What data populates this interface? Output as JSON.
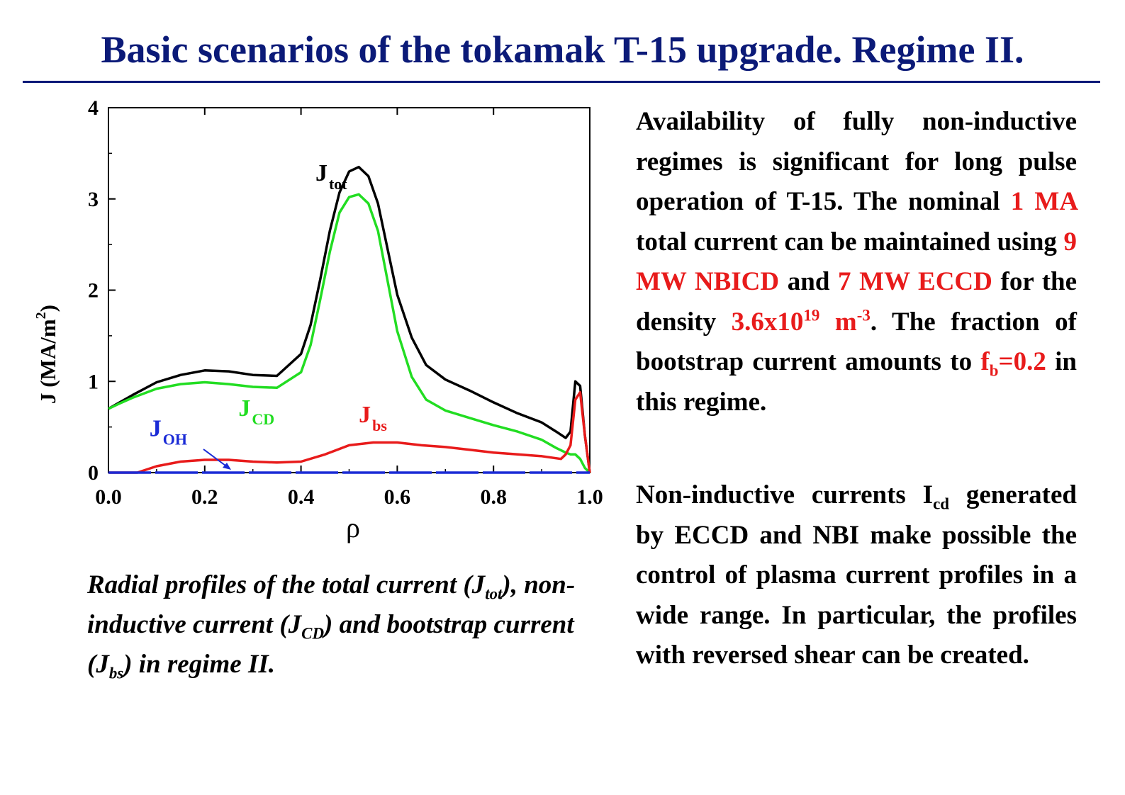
{
  "title": "Basic scenarios of the tokamak T-15 upgrade. Regime II.",
  "colors": {
    "title": "#0b1a78",
    "highlight": "#e81b1b",
    "tot": "#000000",
    "cd": "#22dd22",
    "bs": "#e81b1b",
    "oh": "#1a2bd6"
  },
  "caption": {
    "t1": "Radial profiles of the total current (J",
    "s1": "tot",
    "t2": "), non-inductive current (J",
    "s2": "CD",
    "t3": ") and bootstrap current (J",
    "s3": "bs",
    "t4": ") in regime II."
  },
  "para1": {
    "t1": "Availability of fully non-inductive regimes is significant for long pulse operation of T-15. The nominal ",
    "h1": "1 MA",
    "t2": " total current can be maintained using ",
    "h2": "9 MW NBICD",
    "t3": " and ",
    "h3": "7 MW ECCD",
    "t4": " for the density ",
    "h4": "3.6x10",
    "h4sup": "19",
    "h5": " m",
    "h5sup": "-3",
    "t5": ". The fraction of bootstrap current amounts to ",
    "h6": "f",
    "h6sub": "b",
    "h7": "=0.2",
    "t6": " in this regime."
  },
  "para2": {
    "t1": "Non-inductive currents I",
    "s1": "cd",
    "t2": " generated by ECCD and NBI make possible the control of plasma current profiles in a wide range. In particular, the profiles with reversed shear can be created."
  },
  "chart_data": {
    "type": "line",
    "xlabel": "ρ",
    "ylabel": "J (MA/m",
    "ylabel_sup": "2",
    "ylabel_end": ")",
    "xlim": [
      0,
      1.0
    ],
    "ylim": [
      0,
      4
    ],
    "x_ticks": [
      "0.0",
      "0.2",
      "0.4",
      "0.6",
      "0.8",
      "1.0"
    ],
    "y_ticks": [
      "0",
      "1",
      "2",
      "3",
      "4"
    ],
    "grid": false,
    "series": [
      {
        "name": "J",
        "sub": "tot",
        "color": "#000000",
        "x": [
          0,
          0.02,
          0.05,
          0.1,
          0.15,
          0.2,
          0.25,
          0.3,
          0.35,
          0.4,
          0.42,
          0.44,
          0.46,
          0.48,
          0.5,
          0.52,
          0.54,
          0.56,
          0.58,
          0.6,
          0.63,
          0.66,
          0.7,
          0.75,
          0.8,
          0.85,
          0.9,
          0.93,
          0.95,
          0.96,
          0.97,
          0.98,
          0.99,
          1.0
        ],
        "y": [
          0.7,
          0.76,
          0.85,
          0.99,
          1.07,
          1.12,
          1.11,
          1.07,
          1.06,
          1.3,
          1.62,
          2.12,
          2.65,
          3.07,
          3.3,
          3.35,
          3.25,
          2.95,
          2.45,
          1.95,
          1.48,
          1.18,
          1.02,
          0.9,
          0.77,
          0.65,
          0.55,
          0.45,
          0.38,
          0.45,
          1.0,
          0.95,
          0.4,
          0.0
        ]
      },
      {
        "name": "J",
        "sub": "CD",
        "color": "#22dd22",
        "x": [
          0,
          0.02,
          0.05,
          0.1,
          0.15,
          0.2,
          0.25,
          0.3,
          0.35,
          0.4,
          0.42,
          0.44,
          0.46,
          0.48,
          0.5,
          0.52,
          0.54,
          0.56,
          0.58,
          0.6,
          0.63,
          0.66,
          0.7,
          0.75,
          0.8,
          0.85,
          0.9,
          0.93,
          0.95,
          0.96,
          0.97,
          0.98,
          0.99,
          1.0
        ],
        "y": [
          0.7,
          0.75,
          0.82,
          0.92,
          0.97,
          0.99,
          0.97,
          0.94,
          0.93,
          1.1,
          1.4,
          1.9,
          2.42,
          2.85,
          3.02,
          3.05,
          2.95,
          2.65,
          2.1,
          1.55,
          1.05,
          0.8,
          0.68,
          0.6,
          0.52,
          0.45,
          0.36,
          0.27,
          0.22,
          0.2,
          0.2,
          0.15,
          0.05,
          0.0
        ]
      },
      {
        "name": "J",
        "sub": "bs",
        "color": "#e81b1b",
        "x": [
          0.0,
          0.06,
          0.1,
          0.15,
          0.2,
          0.25,
          0.3,
          0.35,
          0.4,
          0.45,
          0.5,
          0.55,
          0.6,
          0.65,
          0.7,
          0.75,
          0.8,
          0.85,
          0.9,
          0.94,
          0.95,
          0.96,
          0.97,
          0.98,
          0.99,
          1.0
        ],
        "y": [
          0.0,
          0.0,
          0.07,
          0.12,
          0.14,
          0.14,
          0.12,
          0.11,
          0.12,
          0.2,
          0.3,
          0.33,
          0.33,
          0.3,
          0.28,
          0.25,
          0.22,
          0.2,
          0.18,
          0.15,
          0.2,
          0.3,
          0.8,
          0.88,
          0.4,
          0.0
        ]
      },
      {
        "name": "J",
        "sub": "OH",
        "color": "#1a2bd6",
        "x": [
          0,
          1.0
        ],
        "y": [
          0.0,
          0.0
        ]
      }
    ],
    "labels": [
      {
        "main": "J",
        "sub": "tot",
        "color": "#000000",
        "x": 0.43,
        "y": 3.2
      },
      {
        "main": "J",
        "sub": "CD",
        "color": "#22dd22",
        "x": 0.27,
        "y": 0.62
      },
      {
        "main": "J",
        "sub": "bs",
        "color": "#e81b1b",
        "x": 0.52,
        "y": 0.55
      },
      {
        "main": "J",
        "sub": "OH",
        "color": "#1a2bd6",
        "x": 0.085,
        "y": 0.4
      }
    ]
  }
}
